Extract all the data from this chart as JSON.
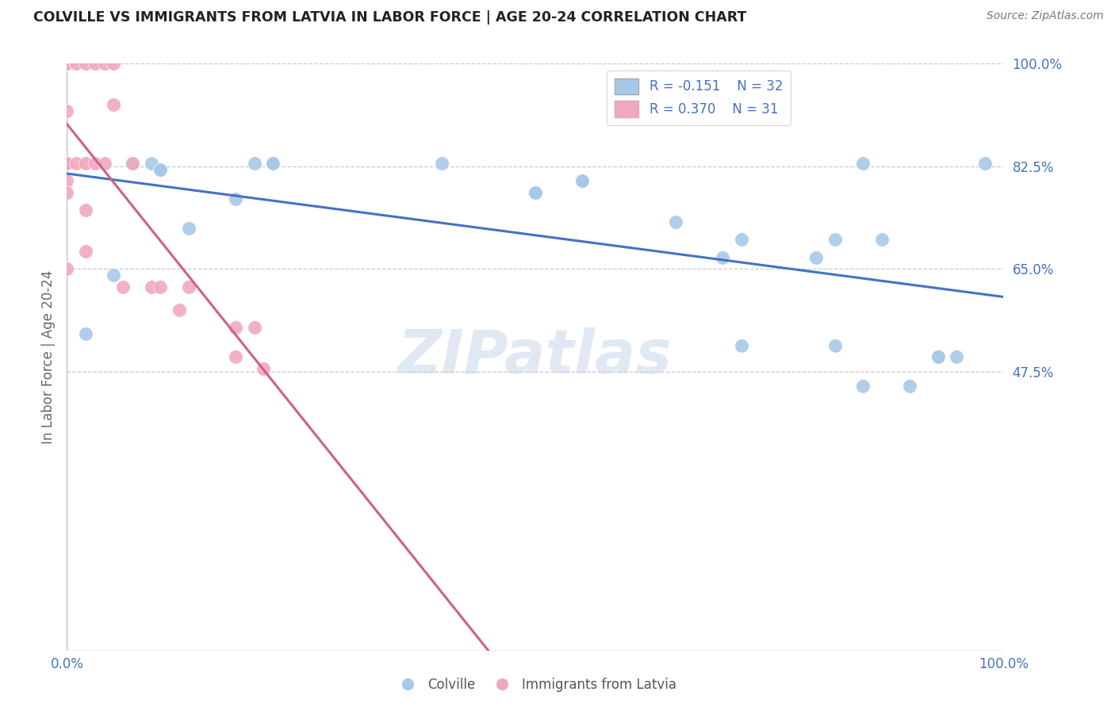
{
  "title": "COLVILLE VS IMMIGRANTS FROM LATVIA IN LABOR FORCE | AGE 20-24 CORRELATION CHART",
  "source": "Source: ZipAtlas.com",
  "ylabel": "In Labor Force | Age 20-24",
  "watermark": "ZIPatlas",
  "legend_r1": "R = -0.151",
  "legend_n1": "N = 32",
  "legend_r2": "R = 0.370",
  "legend_n2": "N = 31",
  "color_blue": "#a8c8e8",
  "color_pink": "#f0a8c0",
  "color_blue_line": "#4472C4",
  "color_pink_line": "#d06080",
  "color_axis_labels": "#4472C4",
  "color_ylabel": "#666666",
  "colville_x": [
    0.02,
    0.05,
    0.07,
    0.07,
    0.09,
    0.1,
    0.1,
    0.13,
    0.18,
    0.2,
    0.22,
    0.22,
    0.4,
    0.55,
    0.55,
    0.65,
    0.72,
    0.72,
    0.82,
    0.82,
    0.85,
    0.85,
    0.87,
    0.9,
    0.93,
    0.93,
    0.95,
    0.98,
    0.5,
    0.5,
    0.7,
    0.8
  ],
  "colville_y": [
    0.54,
    0.64,
    0.83,
    0.83,
    0.83,
    0.82,
    0.82,
    0.72,
    0.77,
    0.83,
    0.83,
    0.83,
    0.83,
    0.8,
    0.8,
    0.73,
    0.52,
    0.7,
    0.52,
    0.7,
    0.83,
    0.45,
    0.7,
    0.45,
    0.5,
    0.5,
    0.5,
    0.83,
    0.78,
    0.78,
    0.67,
    0.67
  ],
  "latvia_x": [
    0.0,
    0.0,
    0.0,
    0.0,
    0.0,
    0.0,
    0.0,
    0.0,
    0.0,
    0.01,
    0.01,
    0.02,
    0.02,
    0.02,
    0.02,
    0.03,
    0.03,
    0.04,
    0.04,
    0.05,
    0.05,
    0.06,
    0.07,
    0.09,
    0.1,
    0.12,
    0.13,
    0.18,
    0.18,
    0.2,
    0.21
  ],
  "latvia_y": [
    1.0,
    1.0,
    1.0,
    0.92,
    0.83,
    0.83,
    0.8,
    0.78,
    0.65,
    1.0,
    0.83,
    1.0,
    0.83,
    0.75,
    0.68,
    1.0,
    0.83,
    1.0,
    0.83,
    1.0,
    0.93,
    0.62,
    0.83,
    0.62,
    0.62,
    0.58,
    0.62,
    0.55,
    0.5,
    0.55,
    0.48
  ],
  "xlim": [
    0.0,
    1.0
  ],
  "ylim": [
    0.0,
    1.0
  ],
  "ytick_vals": [
    0.475,
    0.65,
    0.825,
    1.0
  ],
  "ytick_labels": [
    "47.5%",
    "65.0%",
    "82.5%",
    "100.0%"
  ],
  "xtick_vals": [
    0.0,
    1.0
  ],
  "xtick_labels": [
    "0.0%",
    "100.0%"
  ]
}
